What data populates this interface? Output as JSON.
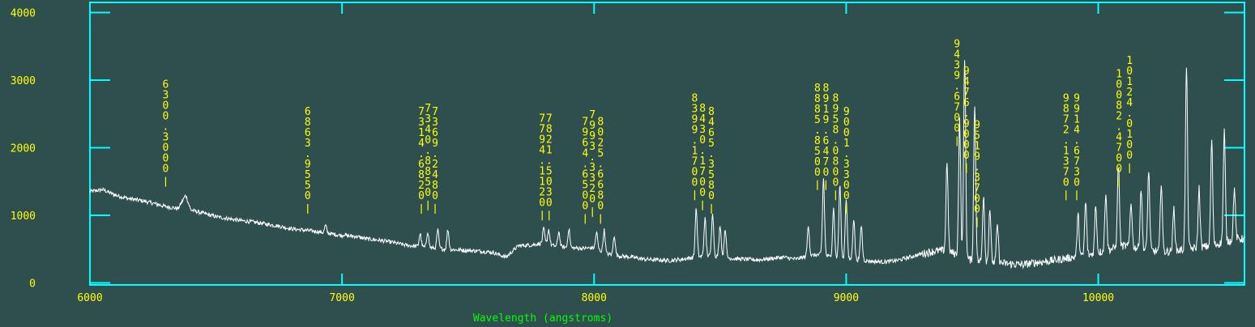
{
  "chart_data": {
    "type": "line",
    "title": "",
    "xlabel": "Wavelength (angstroms)",
    "ylabel": "",
    "xlim": [
      6000,
      10580
    ],
    "ylim": [
      -30,
      4150
    ],
    "x_ticks": [
      6000,
      7000,
      8000,
      9000,
      10000
    ],
    "y_ticks": [
      0,
      1000,
      2000,
      3000,
      4000
    ],
    "grid": false,
    "colors": {
      "background": "#2f4f4f",
      "frame": "#00ffff",
      "spectrum": "#ffffff",
      "labels": "#ffff00",
      "axis_title": "#00ff00"
    },
    "series": [
      {
        "x": [
          6000,
          6050,
          6100,
          6150,
          6200,
          6250,
          6300,
          6350,
          6380,
          6400,
          6450,
          6500,
          6550,
          6600,
          6650,
          6700,
          6750,
          6800,
          6850,
          6900,
          6950,
          7000,
          7050,
          7100,
          7150,
          7200,
          7250,
          7300,
          7350,
          7400,
          7450,
          7500,
          7550,
          7600,
          7650,
          7700,
          7750,
          7800,
          7850,
          7900,
          7950,
          8000,
          8050,
          8100,
          8150,
          8200,
          8250,
          8300,
          8350,
          8400,
          8450,
          8500,
          8550,
          8600,
          8650,
          8700,
          8750,
          8800,
          8850,
          8900,
          8950,
          9000,
          9050,
          9100,
          9150,
          9200,
          9250,
          9300,
          9350,
          9400,
          9450,
          9500,
          9550,
          9600,
          9650,
          9700,
          9750,
          9800,
          9850,
          9900,
          9950,
          10000,
          10050,
          10100,
          10150,
          10200,
          10250,
          10300,
          10350,
          10400,
          10450,
          10500,
          10550
        ],
        "y": [
          1350,
          1380,
          1300,
          1250,
          1220,
          1180,
          1130,
          1100,
          1300,
          1080,
          1030,
          980,
          950,
          920,
          900,
          870,
          840,
          800,
          780,
          760,
          730,
          700,
          690,
          650,
          630,
          600,
          560,
          540,
          520,
          500,
          490,
          480,
          470,
          450,
          380,
          550,
          560,
          590,
          540,
          520,
          510,
          520,
          430,
          400,
          380,
          350,
          340,
          330,
          350,
          380,
          400,
          390,
          360,
          350,
          340,
          360,
          380,
          350,
          400,
          420,
          380,
          350,
          340,
          320,
          310,
          330,
          380,
          430,
          470,
          480,
          400,
          330,
          310,
          300,
          280,
          270,
          300,
          320,
          350,
          380,
          400,
          450,
          500,
          550,
          520,
          480,
          460,
          470,
          500,
          520,
          550,
          600,
          650
        ],
        "peaks": [
          {
            "x": 6380,
            "y": 1300
          },
          {
            "x": 6935,
            "y": 850
          },
          {
            "x": 7010,
            "y": 720
          },
          {
            "x": 7310,
            "y": 730
          },
          {
            "x": 7340,
            "y": 760
          },
          {
            "x": 7380,
            "y": 780
          },
          {
            "x": 7420,
            "y": 790
          },
          {
            "x": 7800,
            "y": 800
          },
          {
            "x": 7820,
            "y": 790
          },
          {
            "x": 7860,
            "y": 760
          },
          {
            "x": 7900,
            "y": 800
          },
          {
            "x": 8010,
            "y": 750
          },
          {
            "x": 8040,
            "y": 780
          },
          {
            "x": 8080,
            "y": 700
          },
          {
            "x": 8405,
            "y": 1100
          },
          {
            "x": 8440,
            "y": 950
          },
          {
            "x": 8470,
            "y": 1050
          },
          {
            "x": 8500,
            "y": 850
          },
          {
            "x": 8520,
            "y": 800
          },
          {
            "x": 8850,
            "y": 850
          },
          {
            "x": 8910,
            "y": 1550
          },
          {
            "x": 8950,
            "y": 1100
          },
          {
            "x": 8975,
            "y": 1450
          },
          {
            "x": 9000,
            "y": 1250
          },
          {
            "x": 9030,
            "y": 950
          },
          {
            "x": 9060,
            "y": 850
          },
          {
            "x": 9400,
            "y": 1800
          },
          {
            "x": 9450,
            "y": 2400
          },
          {
            "x": 9470,
            "y": 3350
          },
          {
            "x": 9510,
            "y": 2650
          },
          {
            "x": 9545,
            "y": 1300
          },
          {
            "x": 9570,
            "y": 1100
          },
          {
            "x": 9600,
            "y": 850
          },
          {
            "x": 9920,
            "y": 1000
          },
          {
            "x": 9950,
            "y": 1200
          },
          {
            "x": 9990,
            "y": 1150
          },
          {
            "x": 10030,
            "y": 1350
          },
          {
            "x": 10080,
            "y": 1750
          },
          {
            "x": 10130,
            "y": 1200
          },
          {
            "x": 10170,
            "y": 1400
          },
          {
            "x": 10200,
            "y": 1650
          },
          {
            "x": 10250,
            "y": 1500
          },
          {
            "x": 10300,
            "y": 1100
          },
          {
            "x": 10350,
            "y": 3200
          },
          {
            "x": 10400,
            "y": 1400
          },
          {
            "x": 10450,
            "y": 2100
          },
          {
            "x": 10500,
            "y": 2250
          },
          {
            "x": 10540,
            "y": 1400
          }
        ]
      }
    ],
    "line_ids": [
      {
        "text": "6300.3000",
        "x": 6300.3,
        "y": 1400
      },
      {
        "text": "6863.9550",
        "x": 6863.955,
        "y": 1000
      },
      {
        "text": "7314.6820",
        "x": 7314.682,
        "y": 1000
      },
      {
        "text": "7340.8850",
        "x": 7340.885,
        "y": 1050
      },
      {
        "text": "7369.2480",
        "x": 7369.248,
        "y": 1000
      },
      {
        "text": "7794.1120",
        "x": 7794.112,
        "y": 900
      },
      {
        "text": "7821.5030",
        "x": 7821.503,
        "y": 900
      },
      {
        "text": "7964.6500",
        "x": 7964.65,
        "y": 850
      },
      {
        "text": "7993.3320",
        "x": 7993.332,
        "y": 950
      },
      {
        "text": "8025.6680",
        "x": 8025.668,
        "y": 850
      },
      {
        "text": "8399.1700",
        "x": 8399.17,
        "y": 1200
      },
      {
        "text": "8430.1700",
        "x": 8430.17,
        "y": 1050
      },
      {
        "text": "8465.3580",
        "x": 8465.358,
        "y": 1000
      },
      {
        "text": "8885.8500",
        "x": 8885.85,
        "y": 1350
      },
      {
        "text": "8919.6470",
        "x": 8919.647,
        "y": 1350
      },
      {
        "text": "8958.0800",
        "x": 8958.08,
        "y": 1200
      },
      {
        "text": "9001.3300",
        "x": 9001.33,
        "y": 1000
      },
      {
        "text": "9439.6700",
        "x": 9439.67,
        "y": 2000
      },
      {
        "text": "9476.9000",
        "x": 9476.9,
        "y": 1600
      },
      {
        "text": "9519.3700",
        "x": 9519.37,
        "y": 800
      },
      {
        "text": "9872.1370",
        "x": 9872.137,
        "y": 1200
      },
      {
        "text": "9914.6730",
        "x": 9914.673,
        "y": 1200
      },
      {
        "text": "10082.4700",
        "x": 10082.47,
        "y": 1400
      },
      {
        "text": "10124.0100",
        "x": 10124.01,
        "y": 1600
      }
    ]
  }
}
